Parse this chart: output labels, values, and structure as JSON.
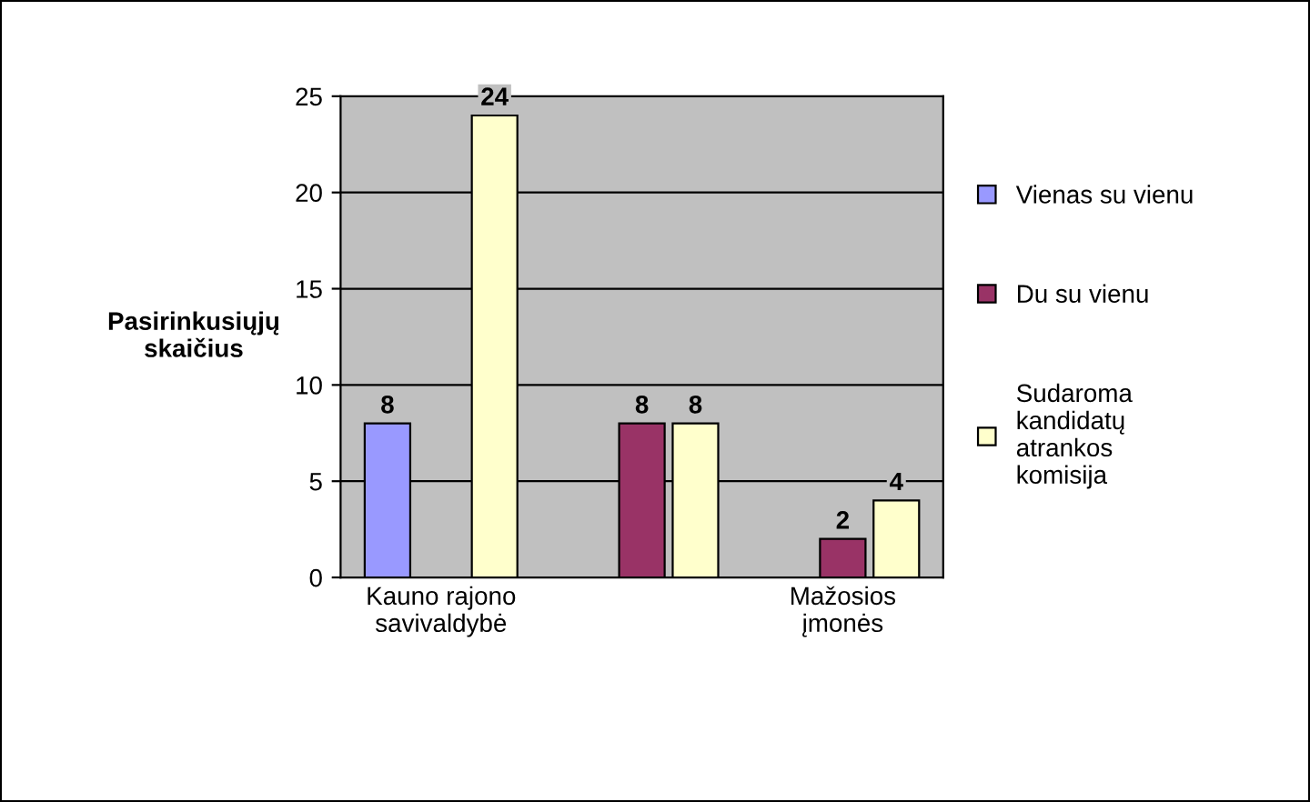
{
  "chart_data": {
    "type": "bar",
    "ylabel": "Pasirinkusiųjų skaičius",
    "categories": [
      "Kauno rajono savivaldybė",
      null,
      "Mažosios įmonės"
    ],
    "series": [
      {
        "name": "Vienas su vienu",
        "color": "#9999ff",
        "values": [
          8,
          null,
          null
        ]
      },
      {
        "name": "Du su vienu",
        "color": "#993366",
        "values": [
          null,
          8,
          2
        ]
      },
      {
        "name": "Sudaroma kandidatų atrankos komisija",
        "color": "#ffffcc",
        "values": [
          24,
          8,
          4
        ]
      }
    ],
    "ylim": [
      0,
      25
    ],
    "yticks": [
      0,
      5,
      10,
      15,
      20,
      25
    ],
    "grid": "y",
    "legend": "right",
    "data_labels": true
  }
}
